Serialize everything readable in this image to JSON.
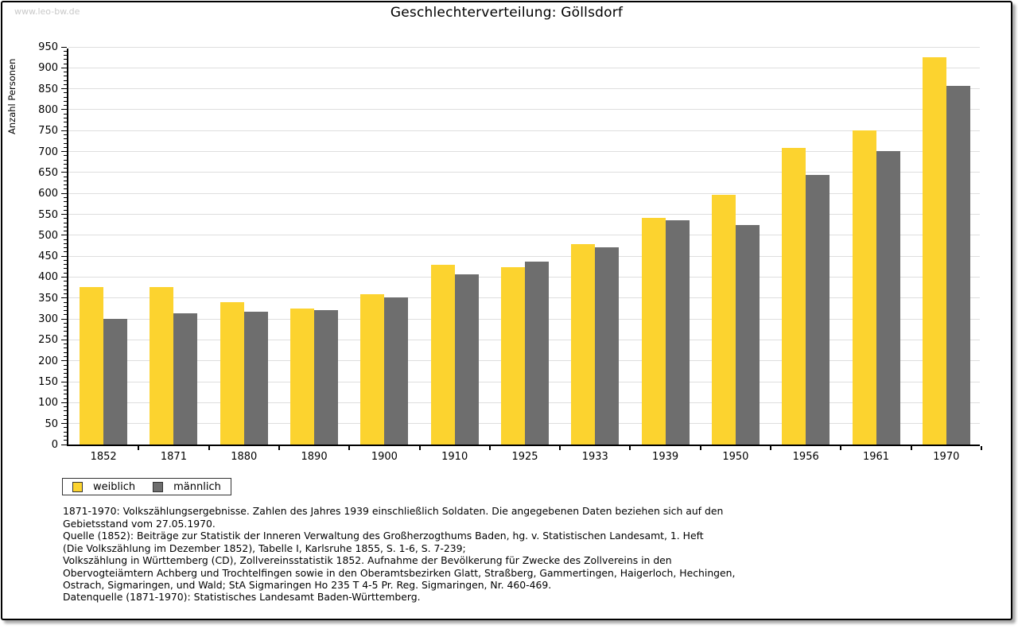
{
  "watermark": "www.leo-bw.de",
  "title": "Geschlechterverteilung: Göllsdorf",
  "chart_data": {
    "type": "bar",
    "title": "Geschlechterverteilung: Göllsdorf",
    "xlabel": "",
    "ylabel": "Anzahl Personen",
    "ylim": [
      0,
      950
    ],
    "ytick_step": 50,
    "ytick_minor_step": 10,
    "grid": true,
    "legend_position": "bottom-left",
    "categories": [
      "1852",
      "1871",
      "1880",
      "1890",
      "1900",
      "1910",
      "1925",
      "1933",
      "1939",
      "1950",
      "1956",
      "1961",
      "1970"
    ],
    "series": [
      {
        "name": "weiblich",
        "color": "#FCD32F",
        "values": [
          376,
          376,
          340,
          324,
          359,
          430,
          423,
          478,
          541,
          596,
          708,
          751,
          926
        ]
      },
      {
        "name": "männlich",
        "color": "#6E6E6E",
        "values": [
          300,
          314,
          317,
          321,
          351,
          406,
          437,
          472,
          536,
          524,
          644,
          702,
          857
        ]
      }
    ]
  },
  "footnotes": {
    "lines": [
      "1871-1970: Volkszählungsergebnisse. Zahlen des Jahres 1939 einschließlich Soldaten. Die angegebenen Daten beziehen sich auf den",
      "Gebietsstand vom 27.05.1970.",
      "Quelle (1852): Beiträge zur Statistik der Inneren Verwaltung des Großherzogthums Baden, hg. v. Statistischen Landesamt, 1. Heft",
      "(Die Volkszählung im Dezember 1852), Tabelle I, Karlsruhe 1855, S. 1-6, S. 7-239;",
      "Volkszählung in Württemberg (CD), Zollvereinsstatistik 1852. Aufnahme der Bevölkerung für Zwecke des Zollvereins in den",
      "Obervogteiämtern Achberg und Trochtelfingen sowie in den Oberamtsbezirken Glatt, Straßberg, Gammertingen, Haigerloch, Hechingen,",
      "Ostrach, Sigmaringen, und Wald; StA Sigmaringen Ho 235 T 4-5 Pr. Reg. Sigmaringen, Nr. 460-469."
    ],
    "source": "Datenquelle (1871-1970): Statistisches Landesamt Baden-Württemberg."
  }
}
